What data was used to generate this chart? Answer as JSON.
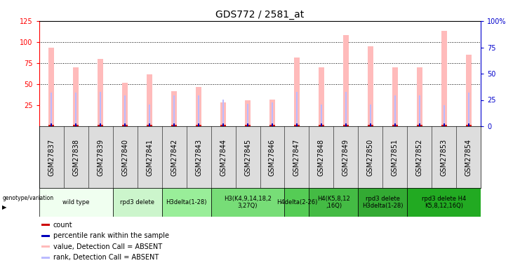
{
  "title": "GDS772 / 2581_at",
  "samples": [
    "GSM27837",
    "GSM27838",
    "GSM27839",
    "GSM27840",
    "GSM27841",
    "GSM27842",
    "GSM27843",
    "GSM27844",
    "GSM27845",
    "GSM27846",
    "GSM27847",
    "GSM27848",
    "GSM27849",
    "GSM27850",
    "GSM27851",
    "GSM27852",
    "GSM27853",
    "GSM27854"
  ],
  "pink_values": [
    93,
    70,
    80,
    52,
    62,
    42,
    47,
    28,
    31,
    32,
    82,
    70,
    108,
    95,
    70,
    70,
    113,
    85
  ],
  "blue_values": [
    40,
    40,
    41,
    37,
    26,
    37,
    37,
    32,
    27,
    28,
    41,
    26,
    41,
    26,
    37,
    37,
    25,
    40
  ],
  "red_values": [
    2,
    2,
    2,
    2,
    2,
    2,
    2,
    2,
    2,
    2,
    2,
    2,
    2,
    2,
    2,
    2,
    2,
    2
  ],
  "dark_blue_values": [
    3,
    3,
    3,
    3,
    3,
    3,
    3,
    3,
    3,
    3,
    3,
    3,
    3,
    3,
    3,
    3,
    3,
    3
  ],
  "groups": [
    {
      "label": "wild type",
      "start": 0,
      "end": 3,
      "color": "#f0fff0"
    },
    {
      "label": "rpd3 delete",
      "start": 3,
      "end": 5,
      "color": "#ccf5cc"
    },
    {
      "label": "H3delta(1-28)",
      "start": 5,
      "end": 7,
      "color": "#99ee99"
    },
    {
      "label": "H3(K4,9,14,18,2\n3,27Q)",
      "start": 7,
      "end": 10,
      "color": "#77dd77"
    },
    {
      "label": "H4delta(2-26)",
      "start": 10,
      "end": 11,
      "color": "#55cc55"
    },
    {
      "label": "H4(K5,8,12\n,16Q)",
      "start": 11,
      "end": 13,
      "color": "#44bb44"
    },
    {
      "label": "rpd3 delete\nH3delta(1-28)",
      "start": 13,
      "end": 15,
      "color": "#33aa33"
    },
    {
      "label": "rpd3 delete H4\nK5,8,12,16Q)",
      "start": 15,
      "end": 18,
      "color": "#22aa22"
    }
  ],
  "ylim_left": [
    0,
    125
  ],
  "ylim_right": [
    0,
    100
  ],
  "yticks_left": [
    25,
    50,
    75,
    100,
    125
  ],
  "yticks_right": [
    0,
    25,
    50,
    75,
    100
  ],
  "pink_color": "#ffbbbb",
  "blue_color": "#bbbbff",
  "red_color": "#cc0000",
  "darkblue_color": "#0000bb",
  "background_color": "#ffffff",
  "tick_gray": "#cccccc",
  "title_fontsize": 10,
  "tick_fontsize": 7,
  "group_fontsize": 6,
  "legend_fontsize": 7,
  "right_axis_color": "#0000cc"
}
